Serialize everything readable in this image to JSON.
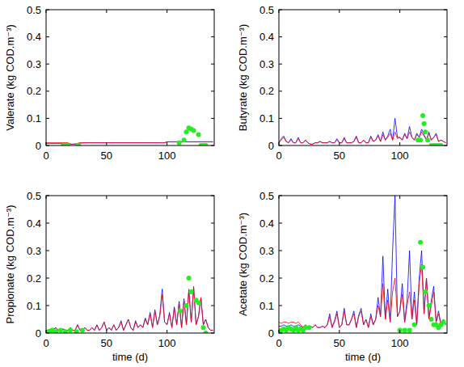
{
  "chart_data": [
    {
      "type": "line",
      "ylabel": "Valerate (kg COD.m⁻³)",
      "x": [
        0,
        2,
        4,
        6,
        8,
        10,
        12,
        14,
        16,
        18,
        20,
        22,
        24,
        26,
        28,
        30,
        32,
        34,
        36,
        38,
        40,
        42,
        44,
        46,
        48,
        50,
        52,
        54,
        56,
        58,
        60,
        62,
        64,
        66,
        68,
        70,
        72,
        74,
        76,
        78,
        80,
        82,
        84,
        86,
        88,
        90,
        92,
        94,
        96,
        98,
        100,
        102,
        104,
        106,
        108,
        110,
        112,
        114,
        116,
        118,
        120,
        122,
        124,
        126,
        128,
        130,
        132,
        134,
        136,
        138
      ],
      "xlim": [
        0,
        139
      ],
      "xticks": [
        0,
        50,
        100
      ],
      "ylim": [
        0,
        0.5
      ],
      "yticks": [
        0,
        0.1,
        0.2,
        0.3,
        0.4,
        0.5
      ],
      "series": [
        {
          "color": "#0000ff",
          "values": [
            0.008,
            0.008,
            0.008,
            0.008,
            0.008,
            0.008,
            0.008,
            0.008,
            0.008,
            0.008,
            0.005,
            0.004,
            0.005,
            0.007,
            0.009,
            0.009,
            0.01,
            0.01,
            0.01,
            0.01,
            0.01,
            0.01,
            0.01,
            0.01,
            0.01,
            0.01,
            0.01,
            0.01,
            0.01,
            0.01,
            0.01,
            0.01,
            0.01,
            0.01,
            0.01,
            0.01,
            0.01,
            0.01,
            0.01,
            0.01,
            0.01,
            0.01,
            0.01,
            0.01,
            0.01,
            0.01,
            0.01,
            0.01,
            0.01,
            0.01,
            0.014,
            0.014,
            0.014,
            0.014,
            0.014,
            0.014,
            0.014,
            0.014,
            0.014,
            0.014,
            0.014,
            0.014,
            0.014,
            0.014,
            0.014,
            0.014,
            0.014,
            0.014,
            0.014,
            0.014
          ]
        },
        {
          "color": "#ff0000",
          "values": [
            0.01,
            0.01,
            0.01,
            0.01,
            0.01,
            0.01,
            0.01,
            0.01,
            0.01,
            0.01,
            0.006,
            0.005,
            0.006,
            0.008,
            0.01,
            0.01,
            0.01,
            0.01,
            0.01,
            0.01,
            0.01,
            0.01,
            0.01,
            0.01,
            0.01,
            0.01,
            0.01,
            0.01,
            0.01,
            0.01,
            0.01,
            0.01,
            0.01,
            0.01,
            0.01,
            0.01,
            0.01,
            0.01,
            0.01,
            0.01,
            0.01,
            0.01,
            0.01,
            0.01,
            0.01,
            0.01,
            0.01,
            0.01,
            0.01,
            0.01,
            0.013,
            0.013,
            0.013,
            0.013,
            0.013,
            0.013,
            0.013,
            0.013,
            0.013,
            0.013,
            0.013,
            0.013,
            0.013,
            0.013,
            0.013,
            0.013,
            0.013,
            0.013,
            0.013,
            0.013
          ]
        },
        {
          "type": "scatter",
          "marker": "circle",
          "color": "#22ee22",
          "x": [
            14,
            16,
            18,
            26,
            27,
            110,
            114,
            116,
            118,
            120,
            122,
            126,
            128,
            130,
            132
          ],
          "values": [
            0,
            0,
            0,
            0,
            0,
            0.01,
            0.02,
            0.05,
            0.065,
            0.06,
            0.055,
            0.04,
            0,
            0,
            0
          ]
        }
      ]
    },
    {
      "type": "line",
      "ylabel": "Butyrate (kg COD.m⁻³)",
      "x": [
        0,
        2,
        4,
        6,
        8,
        10,
        12,
        14,
        16,
        18,
        20,
        22,
        24,
        26,
        28,
        30,
        32,
        34,
        36,
        38,
        40,
        42,
        44,
        46,
        48,
        50,
        52,
        54,
        56,
        58,
        60,
        62,
        64,
        66,
        68,
        70,
        72,
        74,
        76,
        78,
        80,
        82,
        84,
        86,
        88,
        90,
        92,
        94,
        96,
        98,
        100,
        102,
        104,
        106,
        108,
        110,
        112,
        114,
        116,
        118,
        120,
        122,
        124,
        126,
        128,
        130,
        132,
        134,
        136,
        138
      ],
      "xlim": [
        0,
        139
      ],
      "xticks": [
        0,
        50,
        100
      ],
      "ylim": [
        0,
        0.5
      ],
      "yticks": [
        0,
        0.1,
        0.2,
        0.3,
        0.4,
        0.5
      ],
      "series": [
        {
          "color": "#0000ff",
          "values": [
            0.01,
            0.025,
            0.035,
            0.015,
            0.01,
            0.025,
            0.01,
            0.01,
            0.03,
            0.01,
            0.01,
            0.02,
            0.01,
            0.005,
            0.005,
            0.01,
            0.01,
            0.015,
            0.01,
            0.01,
            0.01,
            0.015,
            0.01,
            0.01,
            0.025,
            0.01,
            0.01,
            0.03,
            0.01,
            0.01,
            0.01,
            0.015,
            0.035,
            0.01,
            0.01,
            0.02,
            0.01,
            0.01,
            0.035,
            0.015,
            0.02,
            0.04,
            0.015,
            0.05,
            0.02,
            0.035,
            0.06,
            0.02,
            0.1,
            0.03,
            0.03,
            0.02,
            0.045,
            0.025,
            0.07,
            0.03,
            0.02,
            0.045,
            0.03,
            0.06,
            0.04,
            0.02,
            0.05,
            0.02,
            0.03,
            0.045,
            0.015,
            0.02,
            0.015,
            0.01
          ]
        },
        {
          "color": "#ff0000",
          "values": [
            0.01,
            0.02,
            0.03,
            0.015,
            0.01,
            0.02,
            0.01,
            0.01,
            0.025,
            0.01,
            0.01,
            0.02,
            0.01,
            0.005,
            0.005,
            0.01,
            0.01,
            0.015,
            0.01,
            0.01,
            0.01,
            0.015,
            0.01,
            0.01,
            0.02,
            0.01,
            0.01,
            0.025,
            0.01,
            0.01,
            0.01,
            0.015,
            0.03,
            0.01,
            0.01,
            0.02,
            0.01,
            0.01,
            0.03,
            0.015,
            0.02,
            0.035,
            0.015,
            0.04,
            0.02,
            0.03,
            0.045,
            0.02,
            0.05,
            0.025,
            0.03,
            0.02,
            0.04,
            0.025,
            0.05,
            0.03,
            0.02,
            0.04,
            0.03,
            0.05,
            0.035,
            0.02,
            0.045,
            0.02,
            0.03,
            0.04,
            0.015,
            0.02,
            0.015,
            0.01
          ]
        },
        {
          "type": "scatter",
          "marker": "circle",
          "color": "#22ee22",
          "x": [
            115,
            117,
            119,
            120,
            121,
            123,
            126,
            128,
            130,
            132,
            134
          ],
          "values": [
            0.02,
            0.02,
            0.11,
            0.08,
            0.05,
            0.02,
            0,
            0,
            0,
            0,
            0
          ]
        }
      ]
    },
    {
      "type": "line",
      "ylabel": "Propionate (kg COD.m⁻³)",
      "xlabel": "time (d)",
      "x": [
        0,
        2,
        4,
        6,
        8,
        10,
        12,
        14,
        16,
        18,
        20,
        22,
        24,
        26,
        28,
        30,
        32,
        34,
        36,
        38,
        40,
        42,
        44,
        46,
        48,
        50,
        52,
        54,
        56,
        58,
        60,
        62,
        64,
        66,
        68,
        70,
        72,
        74,
        76,
        78,
        80,
        82,
        84,
        86,
        88,
        90,
        92,
        94,
        96,
        98,
        100,
        102,
        104,
        106,
        108,
        110,
        112,
        114,
        116,
        118,
        120,
        122,
        124,
        126,
        128,
        130,
        132,
        134,
        136,
        138
      ],
      "xlim": [
        0,
        139
      ],
      "xticks": [
        0,
        50,
        100
      ],
      "ylim": [
        0,
        0.5
      ],
      "yticks": [
        0,
        0.1,
        0.2,
        0.3,
        0.4,
        0.5
      ],
      "series": [
        {
          "color": "#0000ff",
          "values": [
            0.01,
            0.01,
            0.015,
            0.01,
            0.02,
            0.01,
            0.01,
            0.015,
            0.01,
            0.01,
            0.02,
            0.01,
            0.01,
            0.03,
            0.01,
            0.01,
            0.02,
            0.01,
            0.01,
            0.02,
            0.01,
            0.03,
            0.01,
            0.02,
            0.04,
            0.01,
            0.02,
            0.01,
            0.03,
            0.01,
            0.02,
            0.045,
            0.01,
            0.03,
            0.05,
            0.02,
            0.01,
            0.045,
            0.02,
            0.03,
            0.02,
            0.055,
            0.03,
            0.075,
            0.02,
            0.085,
            0.03,
            0.065,
            0.16,
            0.04,
            0.03,
            0.075,
            0.02,
            0.095,
            0.03,
            0.115,
            0.02,
            0.125,
            0.03,
            0.155,
            0.04,
            0.165,
            0.03,
            0.06,
            0.125,
            0.03,
            0.05,
            0.02,
            0.01,
            0.01
          ]
        },
        {
          "color": "#ff0000",
          "values": [
            0.01,
            0.01,
            0.015,
            0.01,
            0.02,
            0.01,
            0.01,
            0.015,
            0.01,
            0.01,
            0.02,
            0.01,
            0.01,
            0.03,
            0.01,
            0.01,
            0.02,
            0.01,
            0.01,
            0.02,
            0.01,
            0.03,
            0.01,
            0.02,
            0.04,
            0.01,
            0.02,
            0.01,
            0.03,
            0.01,
            0.02,
            0.04,
            0.01,
            0.03,
            0.05,
            0.02,
            0.01,
            0.04,
            0.02,
            0.03,
            0.02,
            0.05,
            0.03,
            0.07,
            0.02,
            0.08,
            0.03,
            0.06,
            0.14,
            0.04,
            0.03,
            0.07,
            0.02,
            0.09,
            0.03,
            0.11,
            0.02,
            0.12,
            0.03,
            0.16,
            0.04,
            0.17,
            0.03,
            0.06,
            0.13,
            0.03,
            0.05,
            0.02,
            0.01,
            0.01
          ]
        },
        {
          "type": "scatter",
          "marker": "circle",
          "color": "#22ee22",
          "x": [
            2,
            5,
            8,
            12,
            16,
            20,
            25,
            30,
            111,
            116,
            118,
            120,
            124,
            126,
            130,
            132
          ],
          "values": [
            0.005,
            0.01,
            0.005,
            0.01,
            0.005,
            0.01,
            0.005,
            0.01,
            0.08,
            0.1,
            0.2,
            0.15,
            0.12,
            0.11,
            0.02,
            0
          ]
        }
      ]
    },
    {
      "type": "line",
      "ylabel": "Acetate (kg COD.m⁻³)",
      "xlabel": "time (d)",
      "x": [
        0,
        2,
        4,
        6,
        8,
        10,
        12,
        14,
        16,
        18,
        20,
        22,
        24,
        26,
        28,
        30,
        32,
        34,
        36,
        38,
        40,
        42,
        44,
        46,
        48,
        50,
        52,
        54,
        56,
        58,
        60,
        62,
        64,
        66,
        68,
        70,
        72,
        74,
        76,
        78,
        80,
        82,
        84,
        86,
        88,
        90,
        92,
        94,
        96,
        98,
        100,
        102,
        104,
        106,
        108,
        110,
        112,
        114,
        116,
        118,
        120,
        122,
        124,
        126,
        128,
        130,
        132,
        134,
        136,
        138
      ],
      "xlim": [
        0,
        139
      ],
      "xticks": [
        0,
        50,
        100
      ],
      "ylim": [
        0,
        0.5
      ],
      "yticks": [
        0,
        0.1,
        0.2,
        0.3,
        0.4,
        0.5
      ],
      "series": [
        {
          "color": "#0000ff",
          "values": [
            0.025,
            0.025,
            0.03,
            0.025,
            0.025,
            0.03,
            0.025,
            0.025,
            0.03,
            0.025,
            0.02,
            0.03,
            0.02,
            0.025,
            0.02,
            0.03,
            0.02,
            0.02,
            0.025,
            0.02,
            0.03,
            0.07,
            0.02,
            0.045,
            0.08,
            0.02,
            0.03,
            0.09,
            0.03,
            0.03,
            0.05,
            0.08,
            0.02,
            0.065,
            0.09,
            0.03,
            0.05,
            0.02,
            0.07,
            0.03,
            0.05,
            0.13,
            0.06,
            0.28,
            0.05,
            0.16,
            0.04,
            0.3,
            0.5,
            0.06,
            0.08,
            0.18,
            0.04,
            0.12,
            0.3,
            0.05,
            0.15,
            0.03,
            0.2,
            0.3,
            0.07,
            0.2,
            0.05,
            0.12,
            0.17,
            0.04,
            0.08,
            0.03,
            0.05,
            0.03
          ]
        },
        {
          "color": "#ff0000",
          "values": [
            0.04,
            0.035,
            0.04,
            0.04,
            0.035,
            0.04,
            0.04,
            0.035,
            0.04,
            0.03,
            0.02,
            0.03,
            0.02,
            0.025,
            0.02,
            0.03,
            0.02,
            0.02,
            0.025,
            0.02,
            0.03,
            0.06,
            0.02,
            0.04,
            0.07,
            0.02,
            0.03,
            0.08,
            0.03,
            0.03,
            0.05,
            0.07,
            0.02,
            0.06,
            0.08,
            0.03,
            0.05,
            0.02,
            0.06,
            0.03,
            0.05,
            0.1,
            0.06,
            0.18,
            0.05,
            0.12,
            0.04,
            0.15,
            0.2,
            0.06,
            0.08,
            0.14,
            0.04,
            0.1,
            0.15,
            0.05,
            0.12,
            0.03,
            0.18,
            0.25,
            0.07,
            0.2,
            0.05,
            0.1,
            0.15,
            0.04,
            0.07,
            0.03,
            0.05,
            0.03
          ]
        },
        {
          "type": "scatter",
          "marker": "circle",
          "color": "#22ee22",
          "x": [
            2,
            4,
            6,
            8,
            10,
            12,
            14,
            16,
            18,
            20,
            22,
            25,
            100,
            104,
            108,
            112,
            117,
            119,
            121,
            124,
            126,
            128,
            130,
            132,
            134,
            136
          ],
          "values": [
            0.01,
            0.015,
            0.01,
            0.02,
            0.015,
            0.01,
            0.02,
            0.01,
            0.015,
            0.01,
            0.02,
            0.02,
            0.01,
            0.01,
            0.01,
            0.03,
            0.33,
            0.24,
            0.15,
            0.1,
            0.05,
            0.03,
            0.03,
            0.02,
            0.03,
            0.04
          ]
        }
      ]
    }
  ]
}
